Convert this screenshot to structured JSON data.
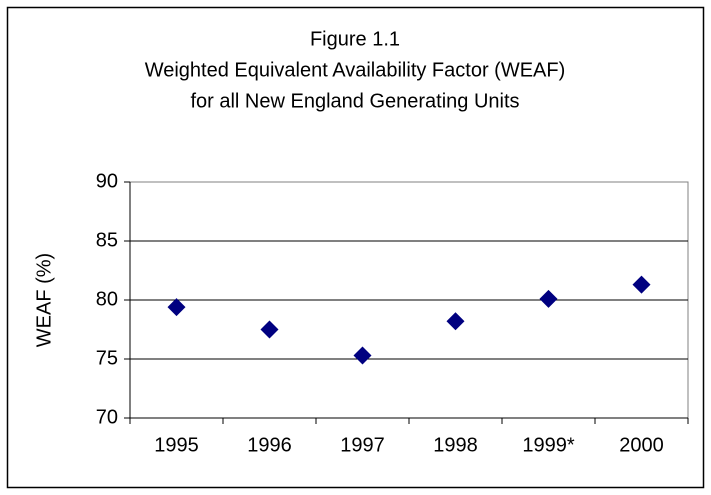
{
  "chart_data": {
    "type": "scatter",
    "title": [
      "Figure 1.1",
      "Weighted Equivalent Availability Factor (WEAF)",
      "for all New England Generating Units"
    ],
    "y_label": "WEAF (%)",
    "categories": [
      "1995",
      "1996",
      "1997",
      "1998",
      "1999*",
      "2000"
    ],
    "values": [
      79.4,
      77.5,
      75.3,
      78.2,
      80.1,
      81.3
    ],
    "color": "#000080",
    "ylim": [
      70,
      90
    ],
    "yticks": [
      70,
      75,
      80,
      85,
      90
    ],
    "grid": true
  }
}
